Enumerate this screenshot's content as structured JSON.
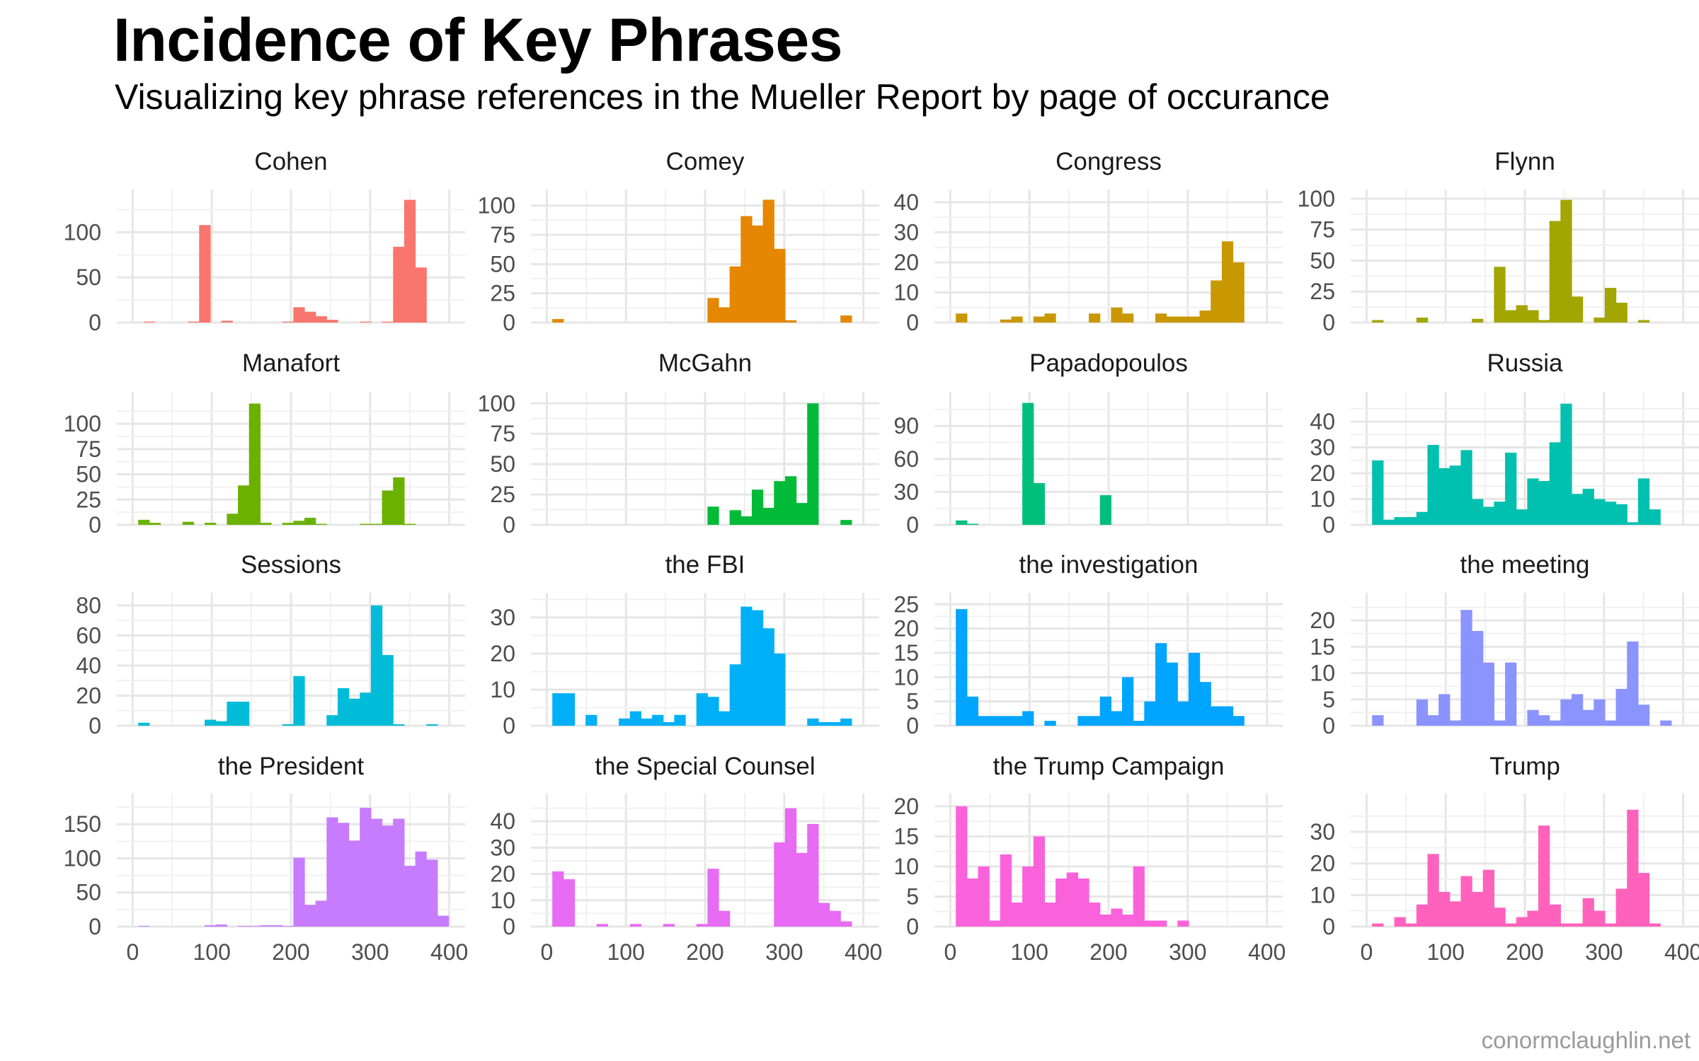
{
  "title": "Incidence of Key Phrases",
  "subtitle": "Visualizing key phrase references in the Mueller Report by page of occurance",
  "caption": "conormclaughlin.net",
  "chart_data": {
    "type": "bar",
    "facet_layout": "4x4",
    "bin_width": 14,
    "xlim": [
      0,
      400
    ],
    "x_ticks": [
      0,
      100,
      200,
      300,
      400
    ],
    "grid": true,
    "facets": [
      {
        "name": "Cohen",
        "color": "#F8766D",
        "ylim": [
          0,
          140
        ],
        "y_ticks": [
          0,
          50,
          100
        ],
        "x": [
          21,
          77,
          91,
          119,
          196,
          210,
          224,
          238,
          252,
          294,
          322,
          336,
          350,
          364
        ],
        "y": [
          1,
          1,
          108,
          2,
          1,
          17,
          12,
          7,
          3,
          1,
          1,
          84,
          136,
          61
        ]
      },
      {
        "name": "Comey",
        "color": "#E58700",
        "ylim": [
          0,
          108
        ],
        "y_ticks": [
          0,
          25,
          50,
          75,
          100
        ],
        "x": [
          14,
          210,
          224,
          238,
          252,
          266,
          280,
          294,
          308,
          378
        ],
        "y": [
          3,
          21,
          13,
          48,
          91,
          83,
          105,
          63,
          2,
          6
        ]
      },
      {
        "name": "Congress",
        "color": "#C99800",
        "ylim": [
          0,
          42
        ],
        "y_ticks": [
          0,
          10,
          20,
          30,
          40
        ],
        "x": [
          14,
          70,
          84,
          112,
          126,
          182,
          210,
          224,
          266,
          280,
          294,
          308,
          322,
          336,
          350,
          364
        ],
        "y": [
          3,
          1,
          2,
          2,
          3,
          3,
          5,
          3,
          3,
          2,
          2,
          2,
          4,
          14,
          27,
          20
        ]
      },
      {
        "name": "Flynn",
        "color": "#A3A500",
        "ylim": [
          0,
          102
        ],
        "y_ticks": [
          0,
          25,
          50,
          75,
          100
        ],
        "x": [
          14,
          70,
          140,
          168,
          182,
          196,
          210,
          224,
          238,
          252,
          266,
          294,
          308,
          322,
          350
        ],
        "y": [
          2,
          4,
          3,
          45,
          10,
          14,
          10,
          2,
          82,
          99,
          21,
          4,
          28,
          16,
          2
        ]
      },
      {
        "name": "Manafort",
        "color": "#6BB100",
        "ylim": [
          0,
          125
        ],
        "y_ticks": [
          0,
          25,
          50,
          75,
          100
        ],
        "x": [
          14,
          28,
          70,
          98,
          126,
          140,
          154,
          168,
          196,
          210,
          224,
          238,
          294,
          308,
          322,
          336,
          350
        ],
        "y": [
          5,
          2,
          3,
          2,
          11,
          39,
          120,
          2,
          2,
          4,
          7,
          1,
          1,
          1,
          34,
          47,
          1
        ]
      },
      {
        "name": "McGahn",
        "color": "#00BA38",
        "ylim": [
          0,
          104
        ],
        "y_ticks": [
          0,
          25,
          50,
          75,
          100
        ],
        "x": [
          210,
          238,
          252,
          266,
          280,
          294,
          308,
          322,
          336,
          378
        ],
        "y": [
          15,
          12,
          7,
          29,
          14,
          36,
          40,
          18,
          100,
          4
        ]
      },
      {
        "name": "Papadopoulos",
        "color": "#00BF7D",
        "ylim": [
          0,
          115
        ],
        "y_ticks": [
          0,
          30,
          60,
          90
        ],
        "x": [
          14,
          28,
          98,
          112,
          196
        ],
        "y": [
          4,
          1,
          111,
          38,
          27
        ]
      },
      {
        "name": "Russia",
        "color": "#00C0AF",
        "ylim": [
          0,
          49
        ],
        "y_ticks": [
          0,
          10,
          20,
          30,
          40
        ],
        "x": [
          14,
          28,
          42,
          56,
          70,
          84,
          98,
          112,
          126,
          140,
          154,
          168,
          182,
          196,
          210,
          224,
          238,
          252,
          266,
          280,
          294,
          308,
          322,
          336,
          350,
          364
        ],
        "y": [
          25,
          2,
          3,
          3,
          5,
          31,
          22,
          23,
          29,
          10,
          7,
          9,
          28,
          6,
          18,
          17,
          32,
          47,
          12,
          14,
          10,
          9,
          8,
          1,
          18,
          6
        ]
      },
      {
        "name": "Sessions",
        "color": "#00BCD8",
        "ylim": [
          0,
          84
        ],
        "y_ticks": [
          0,
          20,
          40,
          60,
          80
        ],
        "x": [
          14,
          98,
          112,
          126,
          140,
          196,
          210,
          252,
          266,
          280,
          294,
          308,
          322,
          336,
          378
        ],
        "y": [
          2,
          4,
          3,
          16,
          16,
          1,
          33,
          7,
          25,
          18,
          22,
          80,
          47,
          1,
          1
        ]
      },
      {
        "name": "the FBI",
        "color": "#00B0F6",
        "ylim": [
          0,
          35
        ],
        "y_ticks": [
          0,
          10,
          20,
          30
        ],
        "x": [
          14,
          28,
          56,
          98,
          112,
          126,
          140,
          154,
          168,
          196,
          210,
          224,
          238,
          252,
          266,
          280,
          294,
          336,
          350,
          364,
          378
        ],
        "y": [
          9,
          9,
          3,
          2,
          4,
          2,
          3,
          1,
          3,
          9,
          8,
          4,
          17,
          33,
          32,
          27,
          20,
          2,
          1,
          1,
          2
        ]
      },
      {
        "name": "the investigation",
        "color": "#00A5FF",
        "ylim": [
          0,
          26
        ],
        "y_ticks": [
          0,
          5,
          10,
          15,
          20,
          25
        ],
        "x": [
          14,
          28,
          42,
          56,
          70,
          84,
          98,
          126,
          168,
          182,
          196,
          210,
          224,
          238,
          252,
          266,
          280,
          294,
          308,
          322,
          336,
          350,
          364
        ],
        "y": [
          24,
          6,
          2,
          2,
          2,
          2,
          3,
          1,
          2,
          2,
          6,
          3,
          10,
          1,
          5,
          17,
          13,
          5,
          15,
          9,
          4,
          4,
          2
        ]
      },
      {
        "name": "the meeting",
        "color": "#8B93FF",
        "ylim": [
          0,
          24
        ],
        "y_ticks": [
          0,
          5,
          10,
          15,
          20
        ],
        "x": [
          14,
          70,
          84,
          98,
          112,
          126,
          140,
          154,
          168,
          182,
          210,
          224,
          238,
          252,
          266,
          280,
          294,
          308,
          322,
          336,
          350,
          378
        ],
        "y": [
          2,
          5,
          2,
          6,
          1,
          22,
          18,
          12,
          1,
          12,
          3,
          2,
          1,
          5,
          6,
          3,
          5,
          1,
          7,
          16,
          4,
          1
        ]
      },
      {
        "name": "the President",
        "color": "#C77CFF",
        "ylim": [
          0,
          185
        ],
        "y_ticks": [
          0,
          50,
          100,
          150
        ],
        "x": [
          14,
          98,
          112,
          140,
          154,
          168,
          182,
          196,
          210,
          224,
          238,
          252,
          266,
          280,
          294,
          308,
          322,
          336,
          350,
          364,
          378,
          392
        ],
        "y": [
          1,
          2,
          3,
          1,
          1,
          2,
          2,
          1,
          101,
          32,
          38,
          160,
          152,
          126,
          174,
          158,
          148,
          158,
          89,
          110,
          98,
          16
        ]
      },
      {
        "name": "the Special Counsel",
        "color": "#E76BF3",
        "ylim": [
          0,
          48
        ],
        "y_ticks": [
          0,
          10,
          20,
          30,
          40
        ],
        "x": [
          14,
          28,
          70,
          112,
          154,
          196,
          210,
          224,
          294,
          308,
          322,
          336,
          350,
          364,
          378
        ],
        "y": [
          21,
          18,
          1,
          1,
          1,
          1,
          22,
          6,
          32,
          45,
          28,
          39,
          9,
          6,
          2
        ]
      },
      {
        "name": "the Trump Campaign",
        "color": "#FA62DB",
        "ylim": [
          0,
          21
        ],
        "y_ticks": [
          0,
          5,
          10,
          15,
          20
        ],
        "x": [
          14,
          28,
          42,
          56,
          70,
          84,
          98,
          112,
          126,
          140,
          154,
          168,
          182,
          196,
          210,
          224,
          238,
          252,
          266,
          294
        ],
        "y": [
          20,
          8,
          10,
          1,
          12,
          4,
          10,
          15,
          4,
          8,
          9,
          8,
          4,
          2,
          3,
          2,
          10,
          1,
          1,
          1
        ]
      },
      {
        "name": "Trump",
        "color": "#FF62BC",
        "ylim": [
          0,
          40
        ],
        "y_ticks": [
          0,
          10,
          20,
          30
        ],
        "x": [
          14,
          42,
          56,
          70,
          84,
          98,
          112,
          126,
          140,
          154,
          168,
          182,
          196,
          210,
          224,
          238,
          252,
          266,
          280,
          294,
          308,
          322,
          336,
          350,
          364
        ],
        "y": [
          1,
          3,
          1,
          7,
          23,
          11,
          8,
          16,
          11,
          18,
          6,
          1,
          3,
          5,
          32,
          7,
          1,
          1,
          9,
          5,
          1,
          12,
          37,
          17,
          1
        ]
      }
    ]
  }
}
